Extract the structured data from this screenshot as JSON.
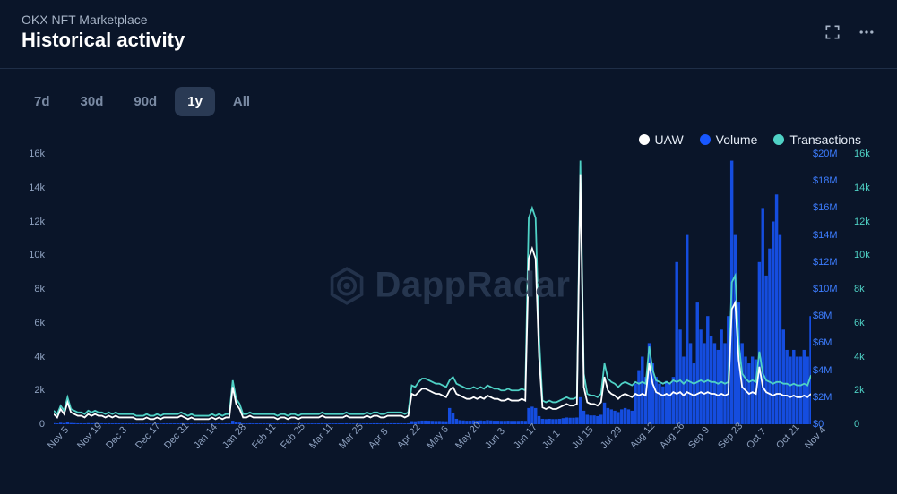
{
  "header": {
    "subtitle": "OKX NFT Marketplace",
    "title": "Historical activity"
  },
  "ranges": [
    {
      "label": "7d",
      "active": false
    },
    {
      "label": "30d",
      "active": false
    },
    {
      "label": "90d",
      "active": false
    },
    {
      "label": "1y",
      "active": true
    },
    {
      "label": "All",
      "active": false
    }
  ],
  "legend": [
    {
      "key": "uaw",
      "label": "UAW",
      "color": "#ffffff"
    },
    {
      "key": "volume",
      "label": "Volume",
      "color": "#1857ff"
    },
    {
      "key": "transactions",
      "label": "Transactions",
      "color": "#4fd1c5"
    }
  ],
  "watermark": {
    "text": "DappRadar",
    "color": "#2a3a54",
    "fontsize": 40
  },
  "colors": {
    "background": "#0a1529",
    "divider": "#1f2e47",
    "subtitle": "#a7b4c7",
    "axis_text": "#8ea1bf",
    "btn_inactive": "#7a8aa3",
    "btn_active_bg": "#2a3a54",
    "volume_bar": "#1857ff",
    "volume_bar_opacity": 0.85,
    "uaw_line": "#ffffff",
    "txn_line": "#4fd1c5",
    "right_axis1": "#3d7dff",
    "right_axis2": "#4fd1c5",
    "line_width": 1.8
  },
  "chart": {
    "type": "combo-line-bar",
    "x_labels": [
      "Nov 5",
      "Nov 19",
      "Dec 3",
      "Dec 17",
      "Dec 31",
      "Jan 14",
      "Jan 28",
      "Feb 11",
      "Feb 25",
      "Mar 11",
      "Mar 25",
      "Apr 8",
      "Apr 22",
      "May 6",
      "May 20",
      "Jun 3",
      "Jun 17",
      "Jul 1",
      "Jul 15",
      "Jul 29",
      "Aug 12",
      "Aug 26",
      "Sep 9",
      "Sep 23",
      "Oct 7",
      "Oct 21",
      "Nov 4"
    ],
    "y_left": {
      "min": 0,
      "max": 16000,
      "ticks": [
        0,
        2000,
        4000,
        6000,
        8000,
        10000,
        12000,
        14000,
        16000
      ],
      "tick_labels": [
        "0",
        "2k",
        "4k",
        "6k",
        "8k",
        "10k",
        "12k",
        "14k",
        "16k"
      ]
    },
    "y_right1": {
      "min": 0,
      "max": 20000000,
      "ticks": [
        0,
        2000000,
        4000000,
        6000000,
        8000000,
        10000000,
        12000000,
        14000000,
        16000000,
        18000000,
        20000000
      ],
      "tick_labels": [
        "$0",
        "$2M",
        "$4M",
        "$6M",
        "$8M",
        "$10M",
        "$12M",
        "$14M",
        "$16M",
        "$18M",
        "$20M"
      ]
    },
    "y_right2": {
      "min": 0,
      "max": 16000,
      "ticks": [
        0,
        2000,
        4000,
        6000,
        8000,
        10000,
        12000,
        14000,
        16000
      ],
      "tick_labels": [
        "0",
        "2k",
        "4k",
        "6k",
        "8k",
        "10k",
        "12k",
        "14k",
        "16k"
      ]
    },
    "uaw": [
      600,
      400,
      900,
      600,
      1300,
      700,
      600,
      500,
      500,
      400,
      600,
      500,
      600,
      500,
      500,
      400,
      500,
      400,
      500,
      400,
      400,
      400,
      400,
      400,
      300,
      300,
      300,
      400,
      300,
      300,
      400,
      300,
      400,
      400,
      400,
      400,
      400,
      500,
      400,
      300,
      400,
      300,
      300,
      300,
      300,
      300,
      400,
      300,
      400,
      300,
      400,
      400,
      2200,
      1200,
      900,
      400,
      400,
      500,
      400,
      400,
      400,
      400,
      400,
      400,
      400,
      300,
      400,
      400,
      300,
      400,
      400,
      300,
      400,
      400,
      400,
      400,
      400,
      400,
      500,
      400,
      400,
      400,
      400,
      400,
      400,
      500,
      400,
      400,
      400,
      400,
      400,
      500,
      400,
      500,
      500,
      400,
      400,
      500,
      500,
      500,
      500,
      500,
      400,
      500,
      1800,
      1700,
      1900,
      2100,
      2100,
      2000,
      1900,
      1800,
      1800,
      1700,
      1600,
      2000,
      2200,
      1800,
      1700,
      1600,
      1500,
      1500,
      1600,
      1500,
      1600,
      1500,
      1700,
      1600,
      1500,
      1500,
      1400,
      1400,
      1500,
      1400,
      1400,
      1400,
      1500,
      1400,
      9800,
      10400,
      9800,
      4000,
      1000,
      900,
      1000,
      900,
      900,
      1000,
      1100,
      1200,
      1100,
      1100,
      1200,
      14800,
      2200,
      1300,
      1200,
      1200,
      1100,
      1300,
      2800,
      2000,
      1800,
      1700,
      1500,
      1700,
      1800,
      1700,
      1600,
      1800,
      1700,
      1800,
      1700,
      3600,
      2400,
      1900,
      1800,
      1700,
      1800,
      1700,
      1900,
      1800,
      1900,
      1700,
      1900,
      1800,
      1700,
      1800,
      1900,
      1800,
      1900,
      1800,
      1800,
      1700,
      1800,
      1700,
      1800,
      6800,
      7200,
      3800,
      2200,
      2000,
      1800,
      1900,
      1800,
      3400,
      2200,
      1900,
      1800,
      1700,
      1800,
      1800,
      1700,
      1700,
      1600,
      1700,
      1600,
      1600,
      1700,
      1600,
      1800
    ],
    "transactions": [
      800,
      600,
      1100,
      800,
      1600,
      900,
      800,
      700,
      700,
      600,
      800,
      700,
      800,
      700,
      700,
      600,
      700,
      600,
      700,
      600,
      600,
      600,
      600,
      600,
      500,
      500,
      500,
      600,
      500,
      500,
      600,
      500,
      600,
      600,
      600,
      600,
      600,
      700,
      600,
      500,
      600,
      500,
      500,
      500,
      500,
      500,
      600,
      500,
      600,
      500,
      600,
      600,
      2600,
      1500,
      1200,
      600,
      600,
      700,
      600,
      600,
      600,
      600,
      600,
      600,
      600,
      500,
      600,
      600,
      500,
      600,
      600,
      500,
      600,
      600,
      600,
      600,
      600,
      600,
      700,
      600,
      600,
      600,
      600,
      600,
      600,
      700,
      600,
      600,
      600,
      600,
      600,
      700,
      600,
      700,
      700,
      600,
      600,
      700,
      700,
      700,
      700,
      700,
      600,
      700,
      2300,
      2200,
      2500,
      2700,
      2700,
      2600,
      2500,
      2400,
      2400,
      2300,
      2200,
      2600,
      2800,
      2400,
      2300,
      2200,
      2100,
      2100,
      2200,
      2100,
      2200,
      2100,
      2300,
      2200,
      2100,
      2100,
      2000,
      2000,
      2100,
      2000,
      2000,
      2000,
      2100,
      2000,
      12200,
      12800,
      12200,
      5200,
      1400,
      1300,
      1400,
      1300,
      1300,
      1400,
      1500,
      1600,
      1500,
      1500,
      1600,
      15600,
      3000,
      1800,
      1700,
      1700,
      1600,
      1800,
      3600,
      2700,
      2500,
      2400,
      2200,
      2400,
      2500,
      2400,
      2300,
      2500,
      2400,
      2500,
      2400,
      4600,
      3200,
      2600,
      2500,
      2400,
      2500,
      2400,
      2600,
      2500,
      2600,
      2400,
      2600,
      2500,
      2400,
      2500,
      2600,
      2500,
      2600,
      2500,
      2500,
      2400,
      2500,
      2400,
      2500,
      8400,
      8800,
      4800,
      3000,
      2700,
      2500,
      2600,
      2500,
      4300,
      3000,
      2600,
      2500,
      2400,
      2500,
      2500,
      2400,
      2400,
      2300,
      2400,
      2300,
      2300,
      2400,
      2300,
      2900
    ],
    "volume_usd": [
      80000,
      60000,
      110000,
      80000,
      160000,
      90000,
      80000,
      70000,
      70000,
      60000,
      80000,
      70000,
      80000,
      70000,
      70000,
      60000,
      70000,
      60000,
      70000,
      60000,
      60000,
      60000,
      60000,
      60000,
      50000,
      50000,
      50000,
      60000,
      50000,
      50000,
      60000,
      50000,
      60000,
      60000,
      60000,
      60000,
      60000,
      70000,
      60000,
      50000,
      60000,
      50000,
      50000,
      50000,
      50000,
      50000,
      60000,
      50000,
      60000,
      50000,
      60000,
      60000,
      260000,
      150000,
      120000,
      60000,
      60000,
      70000,
      60000,
      60000,
      60000,
      60000,
      60000,
      60000,
      60000,
      50000,
      60000,
      60000,
      50000,
      60000,
      60000,
      50000,
      60000,
      60000,
      60000,
      60000,
      60000,
      60000,
      70000,
      60000,
      60000,
      60000,
      60000,
      60000,
      60000,
      70000,
      60000,
      60000,
      60000,
      60000,
      60000,
      70000,
      60000,
      70000,
      70000,
      60000,
      60000,
      70000,
      70000,
      70000,
      70000,
      70000,
      60000,
      70000,
      230000,
      220000,
      250000,
      270000,
      270000,
      260000,
      250000,
      240000,
      240000,
      230000,
      220000,
      1200000,
      800000,
      400000,
      300000,
      280000,
      260000,
      260000,
      280000,
      260000,
      280000,
      260000,
      300000,
      280000,
      260000,
      260000,
      250000,
      250000,
      260000,
      250000,
      250000,
      250000,
      260000,
      250000,
      1200000,
      1300000,
      1200000,
      600000,
      400000,
      380000,
      400000,
      380000,
      380000,
      400000,
      450000,
      500000,
      480000,
      480000,
      500000,
      2000000,
      1000000,
      700000,
      650000,
      650000,
      600000,
      700000,
      1600000,
      1200000,
      1100000,
      1000000,
      900000,
      1100000,
      1200000,
      1100000,
      1000000,
      3000000,
      4000000,
      5000000,
      3500000,
      6000000,
      4500000,
      3500000,
      3000000,
      2800000,
      3200000,
      3000000,
      3500000,
      12000000,
      7000000,
      5000000,
      14000000,
      6000000,
      4500000,
      9000000,
      7000000,
      6000000,
      8000000,
      6500000,
      6000000,
      5500000,
      7000000,
      6000000,
      8000000,
      19500000,
      14000000,
      9000000,
      6000000,
      5000000,
      4500000,
      5000000,
      4800000,
      12000000,
      16000000,
      11000000,
      13000000,
      15000000,
      17000000,
      14000000,
      7000000,
      5500000,
      5000000,
      5500000,
      5000000,
      5000000,
      5500000,
      5000000,
      8000000
    ]
  }
}
